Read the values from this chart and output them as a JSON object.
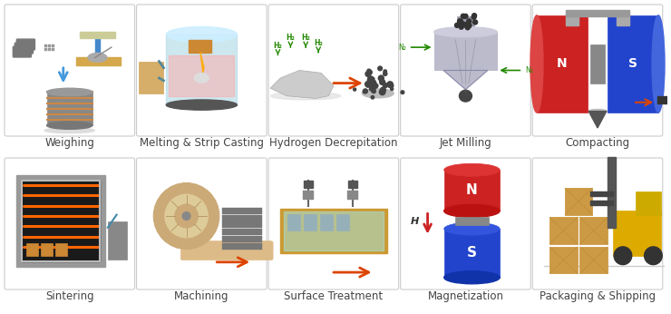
{
  "steps_row1": [
    "Weighing",
    "Melting & Strip Casting",
    "Hydrogen Decrepitation",
    "Jet Milling",
    "Compacting"
  ],
  "steps_row2": [
    "Sintering",
    "Machining",
    "Surface Treatment",
    "Magnetization",
    "Packaging & Shipping"
  ],
  "box_color": "#ffffff",
  "box_edge_color": "#cccccc",
  "bg_color": "#ffffff",
  "label_color": "#444444",
  "label_fontsize": 8.5
}
